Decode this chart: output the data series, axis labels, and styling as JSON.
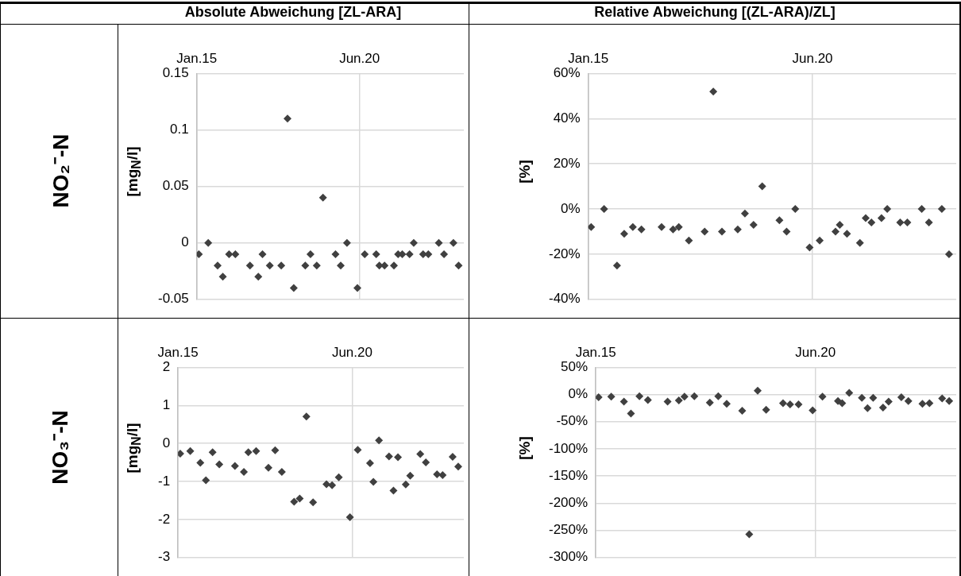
{
  "chart_data": [
    {
      "type": "scatter",
      "title": "Absolute Abweichung [ZL-ARA]",
      "annotations": [
        "NO₂⁻-N"
      ],
      "ylabel": "[mg$_{N}$/l]",
      "color": "#404040",
      "marker": "diamond",
      "grid": true,
      "x": [
        "--01-17",
        "--01-26",
        "--02-04",
        "--02-09",
        "--02-15",
        "--02-21",
        "--03-07",
        "--03-15",
        "--03-19",
        "--03-26",
        "--04-06",
        "--04-12",
        "--04-18",
        "--04-29",
        "--05-04",
        "--05-10",
        "--05-16",
        "--05-28",
        "--06-02",
        "--06-08",
        "--06-18",
        "--06-25",
        "--07-06",
        "--07-09",
        "--07-14",
        "--07-23",
        "--07-27",
        "--07-31",
        "--08-07",
        "--08-11",
        "--08-20",
        "--08-25",
        "--09-04",
        "--09-09",
        "--09-18",
        "--09-23"
      ],
      "values": [
        -0.01,
        0,
        -0.02,
        -0.03,
        -0.01,
        -0.01,
        -0.02,
        -0.03,
        -0.01,
        -0.02,
        -0.02,
        0.11,
        -0.04,
        -0.02,
        -0.01,
        -0.02,
        0.04,
        -0.01,
        -0.02,
        0,
        -0.04,
        -0.01,
        -0.01,
        -0.02,
        -0.02,
        -0.02,
        -0.01,
        -0.01,
        -0.01,
        0,
        -0.01,
        -0.01,
        0,
        -0.01,
        0,
        -0.02
      ],
      "xlim": [
        "--01-15",
        "--09-28"
      ],
      "xticks": [
        {
          "value": "--01-15",
          "label": "Jan.15"
        },
        {
          "value": "--06-20",
          "label": "Jun.20"
        }
      ],
      "ylim": [
        -0.05,
        0.15
      ],
      "yticks": [
        -0.05,
        0,
        0.05,
        0.1,
        0.15
      ]
    },
    {
      "type": "scatter",
      "title": "Relative Abweichung [(ZL-ARA)/ZL]",
      "ylabel": "[%]",
      "color": "#404040",
      "marker": "diamond",
      "grid": true,
      "x": [
        "--01-17",
        "--01-26",
        "--02-04",
        "--02-09",
        "--02-15",
        "--02-21",
        "--03-07",
        "--03-15",
        "--03-19",
        "--03-26",
        "--04-06",
        "--04-12",
        "--04-18",
        "--04-29",
        "--05-04",
        "--05-10",
        "--05-16",
        "--05-28",
        "--06-02",
        "--06-08",
        "--06-18",
        "--06-25",
        "--07-06",
        "--07-09",
        "--07-14",
        "--07-23",
        "--07-27",
        "--07-31",
        "--08-07",
        "--08-11",
        "--08-20",
        "--08-25",
        "--09-04",
        "--09-09",
        "--09-18",
        "--09-23"
      ],
      "values": [
        -8,
        0,
        -25,
        -11,
        -8,
        -9,
        -8,
        -9,
        -8,
        -14,
        -10,
        52,
        -10,
        -9,
        -2,
        -7,
        10,
        -5,
        -10,
        0,
        -17,
        -14,
        -10,
        -7,
        -11,
        -15,
        -4,
        -6,
        -4,
        0,
        -6,
        -6,
        0,
        -6,
        0,
        -20
      ],
      "xlim": [
        "--01-15",
        "--09-28"
      ],
      "xticks": [
        {
          "value": "--01-15",
          "label": "Jan.15"
        },
        {
          "value": "--06-20",
          "label": "Jun.20"
        }
      ],
      "ylim": [
        -40,
        60
      ],
      "yticks": [
        {
          "value": -40,
          "label": "-40%"
        },
        {
          "value": -20,
          "label": "-20%"
        },
        {
          "value": 0,
          "label": "0%"
        },
        {
          "value": 20,
          "label": "20%"
        },
        {
          "value": 40,
          "label": "40%"
        },
        {
          "value": 60,
          "label": "60%"
        }
      ]
    },
    {
      "type": "scatter",
      "annotations": [
        "NO₃⁻-N"
      ],
      "ylabel": "[mg$_{N}$/l]",
      "color": "#404040",
      "marker": "diamond",
      "grid": true,
      "x": [
        "--01-17",
        "--01-26",
        "--02-04",
        "--02-09",
        "--02-15",
        "--02-21",
        "--03-07",
        "--03-15",
        "--03-19",
        "--03-26",
        "--04-06",
        "--04-12",
        "--04-18",
        "--04-29",
        "--05-04",
        "--05-10",
        "--05-16",
        "--05-28",
        "--06-02",
        "--06-08",
        "--06-18",
        "--06-25",
        "--07-06",
        "--07-09",
        "--07-14",
        "--07-23",
        "--07-27",
        "--07-31",
        "--08-07",
        "--08-11",
        "--08-20",
        "--08-25",
        "--09-04",
        "--09-09",
        "--09-18",
        "--09-23"
      ],
      "values": [
        -0.27,
        -0.2,
        -0.51,
        -0.97,
        -0.23,
        -0.55,
        -0.59,
        -0.75,
        -0.23,
        -0.2,
        -0.64,
        -0.18,
        -0.75,
        -1.53,
        -1.45,
        0.71,
        -1.55,
        -1.07,
        -1.1,
        -0.89,
        -1.94,
        -0.17,
        -0.52,
        -1.01,
        0.08,
        -0.34,
        -1.24,
        -0.36,
        -1.08,
        -0.85,
        -0.28,
        -0.5,
        -0.81,
        -0.83,
        -0.35,
        -0.61
      ],
      "xlim": [
        "--01-15",
        "--09-28"
      ],
      "xticks": [
        {
          "value": "--01-15",
          "label": "Jan.15"
        },
        {
          "value": "--06-20",
          "label": "Jun.20"
        }
      ],
      "ylim": [
        -3,
        2
      ],
      "yticks": [
        -3,
        -2,
        -1,
        0,
        1,
        2
      ]
    },
    {
      "type": "scatter",
      "ylabel": "[%]",
      "color": "#404040",
      "marker": "diamond",
      "grid": true,
      "x": [
        "--01-17",
        "--01-26",
        "--02-04",
        "--02-09",
        "--02-15",
        "--02-21",
        "--03-07",
        "--03-15",
        "--03-19",
        "--03-26",
        "--04-06",
        "--04-12",
        "--04-18",
        "--04-29",
        "--05-04",
        "--05-10",
        "--05-16",
        "--05-28",
        "--06-02",
        "--06-08",
        "--06-18",
        "--06-25",
        "--07-06",
        "--07-09",
        "--07-14",
        "--07-23",
        "--07-27",
        "--07-31",
        "--08-07",
        "--08-11",
        "--08-20",
        "--08-25",
        "--09-04",
        "--09-09",
        "--09-18",
        "--09-23"
      ],
      "values": [
        -5,
        -4,
        -13,
        -35,
        -3,
        -10,
        -13,
        -11,
        -4,
        -3,
        -15,
        -3,
        -17,
        -30,
        -257,
        7,
        -28,
        -16,
        -18,
        -18,
        -29,
        -4,
        -12,
        -16,
        3,
        -6,
        -25,
        -6,
        -24,
        -13,
        -5,
        -12,
        -17,
        -16,
        -7,
        -12
      ],
      "xlim": [
        "--01-15",
        "--09-28"
      ],
      "xticks": [
        {
          "value": "--01-15",
          "label": "Jan.15"
        },
        {
          "value": "--06-20",
          "label": "Jun.20"
        }
      ],
      "ylim": [
        -300,
        50
      ],
      "yticks": [
        {
          "value": -300,
          "label": "-300%"
        },
        {
          "value": -250,
          "label": "-250%"
        },
        {
          "value": -200,
          "label": "-200%"
        },
        {
          "value": -150,
          "label": "-150%"
        },
        {
          "value": -100,
          "label": "-100%"
        },
        {
          "value": -50,
          "label": "-50%"
        },
        {
          "value": 0,
          "label": "0%"
        },
        {
          "value": 50,
          "label": "50%"
        }
      ]
    }
  ]
}
